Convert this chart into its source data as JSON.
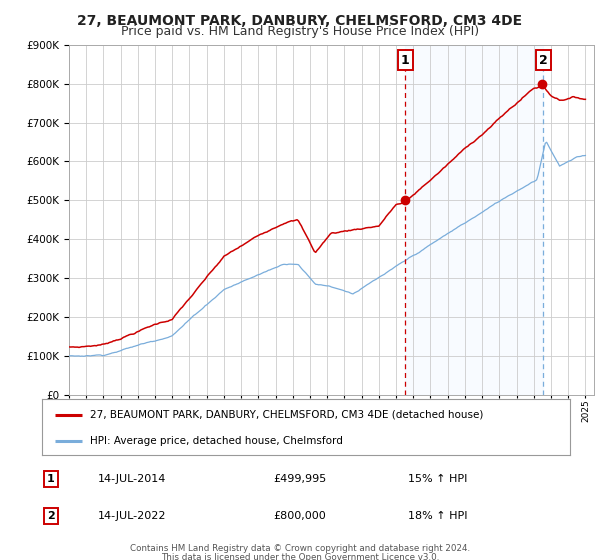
{
  "title": "27, BEAUMONT PARK, DANBURY, CHELMSFORD, CM3 4DE",
  "subtitle": "Price paid vs. HM Land Registry's House Price Index (HPI)",
  "legend_line1": "27, BEAUMONT PARK, DANBURY, CHELMSFORD, CM3 4DE (detached house)",
  "legend_line2": "HPI: Average price, detached house, Chelmsford",
  "annotation1_label": "1",
  "annotation1_date": "14-JUL-2014",
  "annotation1_price": "£499,995",
  "annotation1_hpi": "15% ↑ HPI",
  "annotation1_value": 499995,
  "annotation1_year": 2014.54,
  "annotation2_label": "2",
  "annotation2_date": "14-JUL-2022",
  "annotation2_price": "£800,000",
  "annotation2_hpi": "18% ↑ HPI",
  "annotation2_value": 800000,
  "annotation2_year": 2022.54,
  "footer_line1": "Contains HM Land Registry data © Crown copyright and database right 2024.",
  "footer_line2": "This data is licensed under the Open Government Licence v3.0.",
  "red_color": "#cc0000",
  "blue_color": "#7aaddb",
  "shading_color": "#ddeeff",
  "grid_color": "#cccccc",
  "title_fontsize": 10,
  "subtitle_fontsize": 9,
  "ylim": [
    0,
    900000
  ],
  "xlim_start": 1995.0,
  "xlim_end": 2025.5
}
